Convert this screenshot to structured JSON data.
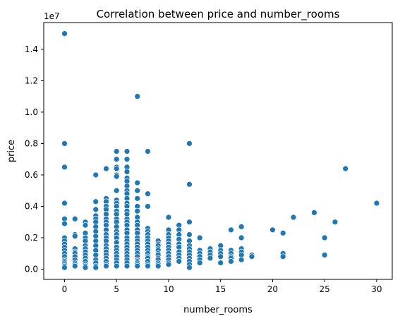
{
  "chart_data": {
    "type": "scatter",
    "title": "Correlation between price and number_rooms",
    "xlabel": "number_rooms",
    "ylabel": "price",
    "offset_text": "1e7",
    "xlim": [
      -2,
      31.5
    ],
    "ylim": [
      -650000,
      15700000
    ],
    "xticks": [
      {
        "value": 0,
        "label": "0"
      },
      {
        "value": 5,
        "label": "5"
      },
      {
        "value": 10,
        "label": "10"
      },
      {
        "value": 15,
        "label": "15"
      },
      {
        "value": 20,
        "label": "20"
      },
      {
        "value": 25,
        "label": "25"
      },
      {
        "value": 30,
        "label": "30"
      }
    ],
    "yticks": [
      {
        "value": 0,
        "label": "0.0"
      },
      {
        "value": 2000000,
        "label": "0.2"
      },
      {
        "value": 4000000,
        "label": "0.4"
      },
      {
        "value": 6000000,
        "label": "0.6"
      },
      {
        "value": 8000000,
        "label": "0.8"
      },
      {
        "value": 10000000,
        "label": "1.0"
      },
      {
        "value": 12000000,
        "label": "1.2"
      },
      {
        "value": 14000000,
        "label": "1.4"
      }
    ],
    "grid": false,
    "legend": "none",
    "marker_color": "#1f77b4",
    "marker_edge_color": "#ffffff",
    "series": [
      {
        "x": [
          0,
          0,
          0,
          0,
          0,
          0,
          0,
          0,
          0,
          0,
          0,
          0,
          0,
          0,
          0,
          0,
          0,
          0,
          0,
          1,
          1,
          1,
          1,
          1,
          1,
          1,
          1,
          1,
          1,
          1,
          2,
          2,
          2,
          2,
          2,
          2,
          2,
          2,
          2,
          2,
          2,
          2,
          2,
          2,
          3,
          3,
          3,
          3,
          3,
          3,
          3,
          3,
          3,
          3,
          3,
          3,
          3,
          3,
          3,
          3,
          3,
          4,
          4,
          4,
          4,
          4,
          4,
          4,
          4,
          4,
          4,
          4,
          4,
          4,
          4,
          4,
          4,
          4,
          4,
          4,
          4,
          4,
          5,
          5,
          5,
          5,
          5,
          5,
          5,
          5,
          5,
          5,
          5,
          5,
          5,
          5,
          5,
          5,
          5,
          5,
          5,
          5,
          5,
          5,
          5,
          5,
          5,
          5,
          6,
          6,
          6,
          6,
          6,
          6,
          6,
          6,
          6,
          6,
          6,
          6,
          6,
          6,
          6,
          6,
          6,
          6,
          6,
          6,
          6,
          6,
          6,
          6,
          6,
          6,
          6,
          6,
          6,
          7,
          7,
          7,
          7,
          7,
          7,
          7,
          7,
          7,
          7,
          7,
          7,
          7,
          7,
          7,
          7,
          7,
          7,
          7,
          7,
          7,
          7,
          7,
          8,
          8,
          8,
          8,
          8,
          8,
          8,
          8,
          8,
          8,
          8,
          8,
          8,
          8,
          8,
          8,
          8,
          9,
          9,
          9,
          9,
          9,
          9,
          9,
          9,
          9,
          9,
          9,
          9,
          10,
          10,
          10,
          10,
          10,
          10,
          10,
          10,
          10,
          10,
          10,
          10,
          10,
          11,
          11,
          11,
          11,
          11,
          11,
          11,
          11,
          11,
          11,
          12,
          12,
          12,
          12,
          12,
          12,
          12,
          12,
          12,
          12,
          12,
          12,
          12,
          13,
          13,
          13,
          13,
          13,
          13,
          14,
          14,
          14,
          14,
          15,
          15,
          15,
          15,
          15,
          16,
          16,
          16,
          16,
          16,
          16,
          17,
          17,
          17,
          17,
          17,
          17,
          18,
          18,
          20,
          21,
          21,
          21,
          22,
          24,
          25,
          25,
          26,
          27,
          30
        ],
        "y": [
          15000000,
          8000000,
          6500000,
          4200000,
          3200000,
          2900000,
          2000000,
          1800000,
          1600000,
          1400000,
          1200000,
          1000000,
          800000,
          600000,
          500000,
          400000,
          300000,
          200000,
          100000,
          3200000,
          2200000,
          2100000,
          1300000,
          1100000,
          1000000,
          800000,
          600000,
          400000,
          300000,
          200000,
          3000000,
          2800000,
          2300000,
          2000000,
          1800000,
          1500000,
          1300000,
          1100000,
          900000,
          700000,
          500000,
          300000,
          200000,
          100000,
          6000000,
          4300000,
          3800000,
          3400000,
          3200000,
          3000000,
          2700000,
          2400000,
          2100000,
          1800000,
          1500000,
          1200000,
          900000,
          600000,
          400000,
          200000,
          100000,
          6400000,
          4500000,
          4300000,
          4000000,
          3800000,
          3500000,
          3200000,
          3000000,
          2800000,
          2500000,
          2200000,
          2000000,
          1800000,
          1500000,
          1300000,
          1100000,
          900000,
          700000,
          500000,
          300000,
          200000,
          7500000,
          7000000,
          6500000,
          6400000,
          6000000,
          5900000,
          5000000,
          4400000,
          4200000,
          4000000,
          3700000,
          3500000,
          3200000,
          3000000,
          2700000,
          2400000,
          2200000,
          2000000,
          1700000,
          1400000,
          1200000,
          1000000,
          800000,
          600000,
          400000,
          200000,
          7500000,
          7000000,
          6500000,
          6200000,
          5800000,
          5600000,
          5300000,
          5000000,
          4800000,
          4500000,
          4200000,
          4000000,
          3700000,
          3500000,
          3200000,
          3000000,
          2800000,
          2500000,
          2300000,
          2000000,
          1800000,
          1600000,
          1400000,
          1200000,
          1000000,
          800000,
          600000,
          400000,
          200000,
          11000000,
          5500000,
          5000000,
          4500000,
          4000000,
          3700000,
          3300000,
          3000000,
          2800000,
          2500000,
          2300000,
          2000000,
          1800000,
          1600000,
          1400000,
          1200000,
          1000000,
          800000,
          600000,
          500000,
          400000,
          300000,
          200000,
          7500000,
          4800000,
          4000000,
          2600000,
          2400000,
          2200000,
          2000000,
          1800000,
          1600000,
          1400000,
          1200000,
          1000000,
          800000,
          700000,
          500000,
          300000,
          200000,
          1800000,
          1600000,
          1500000,
          1300000,
          1200000,
          1000000,
          900000,
          700000,
          600000,
          400000,
          300000,
          200000,
          3300000,
          2500000,
          2200000,
          2000000,
          1800000,
          1600000,
          1400000,
          1200000,
          1000000,
          800000,
          600000,
          400000,
          300000,
          2800000,
          2500000,
          2200000,
          1900000,
          1600000,
          1400000,
          1100000,
          900000,
          700000,
          500000,
          8000000,
          5400000,
          3000000,
          2200000,
          1800000,
          1500000,
          1300000,
          1100000,
          900000,
          700000,
          500000,
          300000,
          100000,
          2000000,
          1200000,
          1000000,
          800000,
          600000,
          400000,
          1300000,
          1100000,
          900000,
          700000,
          1500000,
          1200000,
          1000000,
          800000,
          400000,
          2500000,
          1200000,
          1000000,
          800000,
          700000,
          500000,
          2700000,
          2000000,
          1300000,
          1100000,
          900000,
          600000,
          900000,
          800000,
          2500000,
          2300000,
          1000000,
          800000,
          3300000,
          3600000,
          2000000,
          900000,
          3000000,
          6400000,
          4200000
        ]
      }
    ]
  }
}
